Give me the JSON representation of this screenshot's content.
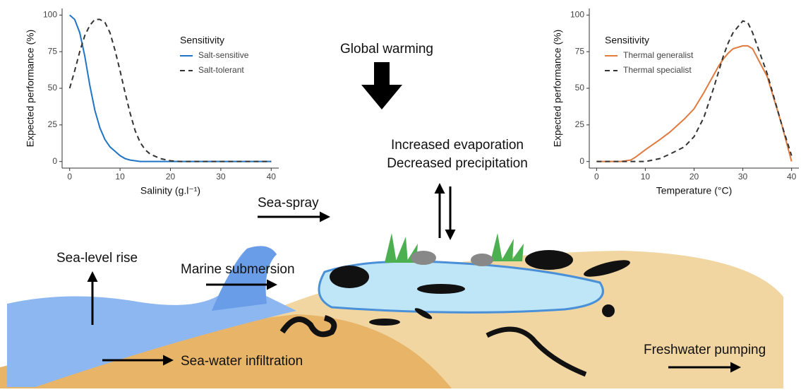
{
  "chart_data": [
    {
      "type": "line",
      "y_label": "Expected performance (%)",
      "x_label": "Salinity (g.l⁻¹)",
      "legend_title": "Sensitivity",
      "x": [
        0,
        1,
        2,
        3,
        4,
        5,
        6,
        7,
        8,
        9,
        10,
        11,
        12,
        13,
        14,
        15,
        16,
        18,
        20,
        22,
        25,
        30,
        35,
        40
      ],
      "series": [
        {
          "name": "Salt-sensitive",
          "color": "#1f74c6",
          "style": "solid",
          "values": [
            100,
            97,
            88,
            72,
            52,
            35,
            23,
            15,
            10,
            7,
            4,
            2,
            1,
            0.5,
            0,
            0,
            0,
            0,
            0,
            0,
            0,
            0,
            0,
            0
          ]
        },
        {
          "name": "Salt-tolerant",
          "color": "#333333",
          "style": "dashed",
          "values": [
            50,
            62,
            75,
            86,
            93,
            97,
            97,
            95,
            88,
            76,
            62,
            47,
            33,
            21,
            13,
            8,
            5,
            2,
            0.5,
            0,
            0,
            0,
            0,
            0
          ]
        }
      ],
      "xlim": [
        -1.5,
        41.5
      ],
      "ylim": [
        -4.5,
        104.5
      ],
      "xticks": [
        0,
        10,
        20,
        30,
        40
      ],
      "yticks": [
        0,
        25,
        50,
        75,
        100
      ]
    },
    {
      "type": "line",
      "y_label": "Expected performance (%)",
      "x_label": "Temperature (°C)",
      "legend_title": "Sensitivity",
      "x": [
        0,
        5,
        7,
        8,
        10,
        13,
        15,
        18,
        20,
        22,
        24,
        25,
        26,
        27,
        28,
        30,
        31,
        32,
        35,
        38,
        40
      ],
      "series": [
        {
          "name": "Thermal generalist",
          "color": "#e07a3f",
          "style": "solid",
          "values": [
            0,
            0,
            1,
            3,
            8,
            15,
            20,
            29,
            36,
            47,
            59,
            65,
            70,
            74,
            77,
            79,
            79,
            77,
            58,
            25,
            0
          ]
        },
        {
          "name": "Thermal specialist",
          "color": "#333333",
          "style": "dashed",
          "values": [
            0,
            0,
            0,
            0,
            0,
            2,
            5,
            10,
            17,
            30,
            50,
            61,
            72,
            81,
            88,
            96,
            95,
            88,
            60,
            25,
            4
          ]
        }
      ],
      "xlim": [
        -1.5,
        41.5
      ],
      "ylim": [
        -4.5,
        104.5
      ],
      "xticks": [
        0,
        10,
        20,
        30,
        40
      ],
      "yticks": [
        0,
        25,
        50,
        75,
        100
      ]
    }
  ],
  "labels": {
    "global_warming": "Global warming",
    "evaporation": "Increased evaporation",
    "precipitation": "Decreased precipitation",
    "sea_spray": "Sea-spray",
    "sea_level": "Sea-level rise",
    "submersion": "Marine submersion",
    "infiltration": "Sea-water infiltration",
    "pumping": "Freshwater pumping"
  }
}
